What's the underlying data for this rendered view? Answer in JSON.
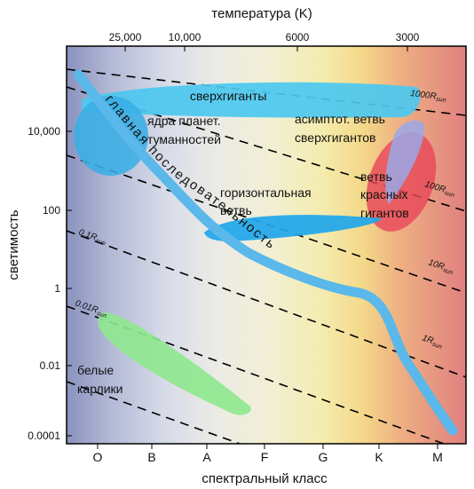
{
  "title_top": "температура (K)",
  "xlabel": "спектральный класс",
  "ylabel": "светимость",
  "temperature_ticks": [
    "25,000",
    "10,000",
    "6000",
    "3000"
  ],
  "luminosity_ticks": [
    "10,000",
    "100",
    "1",
    "0.01",
    "0.0001"
  ],
  "spectral_classes": [
    "O",
    "B",
    "A",
    "F",
    "G",
    "K",
    "M"
  ],
  "regions": {
    "supergiants": "сверхгиганты",
    "pn_nuclei_1": "ядра планет.",
    "pn_nuclei_2": "туманностей",
    "agb_1": "асимптот. ветвь",
    "agb_2": "сверхгигантов",
    "horizontal_1": "горизонтальная",
    "horizontal_2": "ветвь",
    "rgb_1": "ветвь",
    "rgb_2": "красных",
    "rgb_3": "гигантов",
    "white_dwarfs_1": "белые",
    "white_dwarfs_2": "карлики",
    "main_sequence": "главная последовательность"
  },
  "radius_lines": [
    {
      "label": "1000R",
      "sub": "sun"
    },
    {
      "label": "100R",
      "sub": "sun"
    },
    {
      "label": "10R",
      "sub": "sun"
    },
    {
      "label": "1R",
      "sub": "sun"
    },
    {
      "label": "0.1R",
      "sub": "sun"
    },
    {
      "label": "0.01R",
      "sub": "sun"
    }
  ],
  "colors": {
    "main_sequence": "#5ab8ea",
    "supergiants": "#4cc8f0",
    "red_giants": "#e8485a",
    "white_dwarfs": "#8ee88e",
    "pn_nuclei": "#3aaee6"
  }
}
